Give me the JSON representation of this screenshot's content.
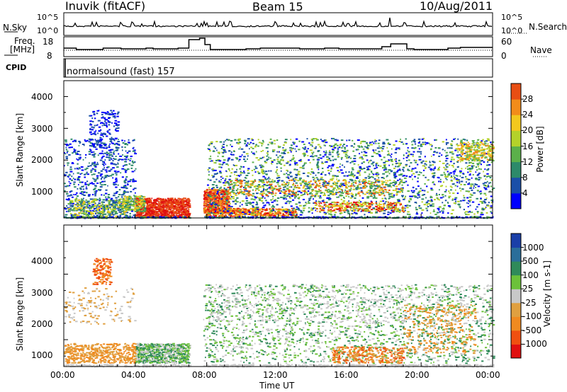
{
  "header": {
    "station": "Inuvik (fitACF)",
    "beam": "Beam 15",
    "date": "10/Aug/2011"
  },
  "noise_panel": {
    "left_label": "N.Sky",
    "right_label": "N.Search",
    "left_ticks": [
      "10^5",
      "10^0"
    ],
    "right_ticks": [
      "10^5",
      "10^0"
    ]
  },
  "freq_panel": {
    "left_label_1": "Freq.",
    "left_label_2": "[MHz]",
    "right_label": "Nave",
    "left_ticks": [
      "18",
      "8"
    ],
    "right_ticks": [
      "60",
      "0"
    ]
  },
  "cpid": {
    "label": "CPID",
    "text": "normalsound (fast) 157"
  },
  "x_axis": {
    "label": "Time UT",
    "ticks": [
      "00:00",
      "04:00",
      "08:00",
      "12:00",
      "16:00",
      "20:00",
      "00:00"
    ]
  },
  "power_panel": {
    "ylabel": "Slant Range [km]",
    "yticks": [
      "1000",
      "2000",
      "3000",
      "4000"
    ],
    "colorbar_label": "Power [dB]",
    "colorbar_ticks": [
      "4",
      "8",
      "12",
      "16",
      "20",
      "24",
      "28"
    ],
    "colors": [
      "#0000ff",
      "#1a4fa8",
      "#2d8a6a",
      "#5bb04a",
      "#b4d22a",
      "#f2c81e",
      "#f28c1a",
      "#e84e14",
      "#e01010"
    ]
  },
  "velocity_panel": {
    "ylabel": "Slant Range [km]",
    "yticks": [
      "1000",
      "2000",
      "3000",
      "4000"
    ],
    "colorbar_label": "Velocity [m s-1]",
    "colorbar_ticks": [
      "1000",
      "500",
      "100",
      "25",
      "-25",
      "-100",
      "-500",
      "-1000"
    ],
    "colors": [
      "#1a3fa8",
      "#2a6e9a",
      "#2f8a5a",
      "#6cc13a",
      "#c8c8c8",
      "#e0a040",
      "#f08a20",
      "#f05010",
      "#e01010"
    ]
  },
  "chart_data": [
    {
      "type": "heatmap",
      "title": "Power",
      "xlabel": "Time UT",
      "ylabel": "Slant Range [km]",
      "xlim": [
        "00:00",
        "24:00"
      ],
      "ylim": [
        180,
        4500
      ],
      "colorbar": {
        "label": "Power [dB]",
        "range": [
          0,
          30
        ]
      },
      "data_gap": [
        "07:00",
        "07:45"
      ],
      "scatter_regions": [
        {
          "x": [
            "00:00",
            "04:00"
          ],
          "range_km": [
            200,
            2700
          ],
          "level": "low"
        },
        {
          "x": [
            "01:30",
            "03:00"
          ],
          "range_km": [
            2500,
            3600
          ],
          "level": "low"
        },
        {
          "x": [
            "04:00",
            "07:00"
          ],
          "range_km": [
            200,
            800
          ],
          "level": "high"
        },
        {
          "x": [
            "07:45",
            "09:00"
          ],
          "range_km": [
            300,
            1100
          ],
          "level": "high"
        },
        {
          "x": [
            "08:00",
            "24:00"
          ],
          "range_km": [
            400,
            2700
          ],
          "level": "mixed"
        }
      ]
    },
    {
      "type": "heatmap",
      "title": "Velocity",
      "xlabel": "Time UT",
      "ylabel": "Slant Range [km]",
      "xlim": [
        "00:00",
        "24:00"
      ],
      "ylim": [
        180,
        4500
      ],
      "colorbar": {
        "label": "Velocity [m s-1]",
        "range": [
          -1000,
          1000
        ]
      },
      "data_gap": [
        "07:00",
        "07:45"
      ],
      "scatter_regions": [
        {
          "x": [
            "01:30",
            "02:30"
          ],
          "range_km": [
            2700,
            3500
          ],
          "level": "negative"
        },
        {
          "x": [
            "00:00",
            "04:00"
          ],
          "range_km": [
            300,
            900
          ],
          "level": "negative"
        },
        {
          "x": [
            "04:00",
            "07:00"
          ],
          "range_km": [
            300,
            800
          ],
          "level": "positive"
        },
        {
          "x": [
            "08:00",
            "24:00"
          ],
          "range_km": [
            300,
            2700
          ],
          "level": "mixed"
        }
      ]
    }
  ]
}
